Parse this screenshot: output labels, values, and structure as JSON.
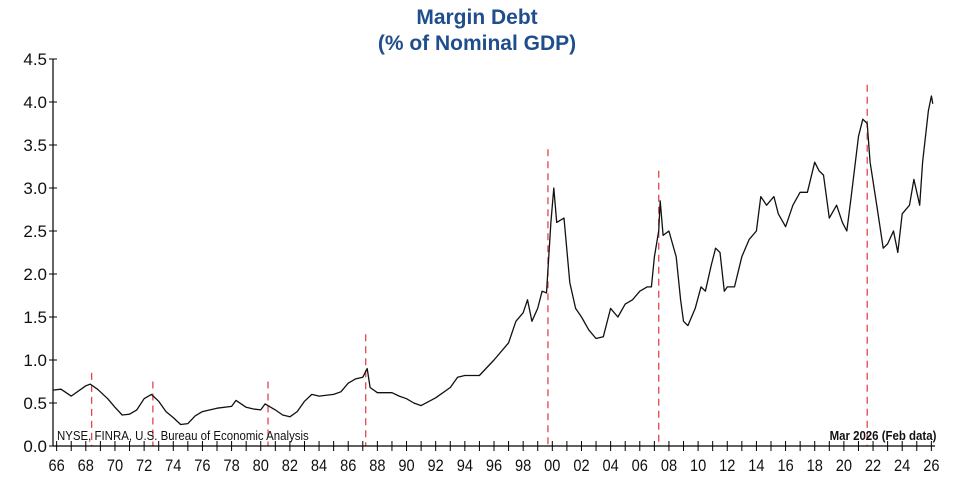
{
  "chart_data": {
    "type": "line",
    "title": "Margin Debt",
    "subtitle": "(% of Nominal GDP)",
    "xlabel": "",
    "ylabel": "",
    "xlim": [
      1965.75,
      2026.25
    ],
    "ylim": [
      0,
      4.5
    ],
    "grid": false,
    "yticks": [
      "0.0",
      "0.5",
      "1.0",
      "1.5",
      "2.0",
      "2.5",
      "3.0",
      "3.5",
      "4.0",
      "4.5"
    ],
    "xtick_labels": [
      "66",
      "68",
      "70",
      "72",
      "74",
      "76",
      "78",
      "80",
      "82",
      "84",
      "86",
      "88",
      "90",
      "92",
      "94",
      "96",
      "98",
      "00",
      "02",
      "04",
      "06",
      "08",
      "10",
      "12",
      "14",
      "16",
      "18",
      "20",
      "22",
      "24",
      "26"
    ],
    "source": "NYSE, FINRA, U.S. Bureau of Economic Analysis",
    "date_note": "Mar 2026 (Feb data)",
    "line_color": "#111111",
    "marker_color": "#e0474c",
    "series": [
      {
        "name": "Margin Debt % of GDP",
        "x": [
          1965.75,
          1966.3,
          1967,
          1968,
          1968.3,
          1968.8,
          1969.5,
          1970,
          1970.5,
          1971,
          1971.5,
          1972,
          1972.5,
          1973,
          1973.5,
          1974,
          1974.5,
          1975,
          1975.5,
          1976,
          1977,
          1978,
          1978.3,
          1979,
          1979.5,
          1980,
          1980.3,
          1981,
          1981.5,
          1982,
          1982.5,
          1983,
          1983.5,
          1984,
          1985,
          1985.5,
          1986,
          1986.5,
          1987,
          1987.3,
          1987.5,
          1988,
          1989,
          1989.5,
          1990,
          1990.5,
          1991,
          1992,
          1993,
          1993.5,
          1994,
          1995,
          1996,
          1997,
          1997.5,
          1998,
          1998.3,
          1998.6,
          1999,
          1999.3,
          1999.6,
          1999.9,
          2000.1,
          2000.3,
          2000.8,
          2001.2,
          2001.6,
          2002,
          2002.5,
          2003,
          2003.5,
          2004,
          2004.5,
          2005,
          2005.5,
          2006,
          2006.5,
          2006.8,
          2007,
          2007.3,
          2007.4,
          2007.6,
          2008,
          2008.5,
          2008.8,
          2009,
          2009.3,
          2009.8,
          2010.2,
          2010.5,
          2010.9,
          2011.2,
          2011.5,
          2011.8,
          2012,
          2012.5,
          2013,
          2013.5,
          2014,
          2014.3,
          2014.7,
          2015.2,
          2015.5,
          2016,
          2016.5,
          2017,
          2017.5,
          2018,
          2018.3,
          2018.6,
          2019,
          2019.5,
          2019.9,
          2020.2,
          2020.5,
          2021,
          2021.3,
          2021.6,
          2021.8,
          2022.3,
          2022.7,
          2023,
          2023.4,
          2023.7,
          2024,
          2024.5,
          2024.8,
          2025.2,
          2025.4,
          2025.8,
          2026,
          2026.1
        ],
        "y": [
          0.65,
          0.66,
          0.58,
          0.7,
          0.72,
          0.66,
          0.55,
          0.45,
          0.36,
          0.37,
          0.42,
          0.55,
          0.6,
          0.52,
          0.4,
          0.33,
          0.25,
          0.26,
          0.35,
          0.4,
          0.44,
          0.46,
          0.53,
          0.45,
          0.43,
          0.42,
          0.49,
          0.42,
          0.36,
          0.34,
          0.4,
          0.52,
          0.6,
          0.58,
          0.6,
          0.63,
          0.73,
          0.78,
          0.8,
          0.9,
          0.68,
          0.62,
          0.62,
          0.58,
          0.55,
          0.5,
          0.47,
          0.56,
          0.68,
          0.8,
          0.82,
          0.82,
          1.0,
          1.2,
          1.45,
          1.55,
          1.7,
          1.45,
          1.6,
          1.8,
          1.78,
          2.6,
          3.0,
          2.6,
          2.65,
          1.9,
          1.6,
          1.5,
          1.35,
          1.25,
          1.27,
          1.6,
          1.5,
          1.65,
          1.7,
          1.8,
          1.85,
          1.85,
          2.2,
          2.5,
          2.85,
          2.45,
          2.5,
          2.2,
          1.7,
          1.45,
          1.4,
          1.6,
          1.85,
          1.8,
          2.1,
          2.3,
          2.25,
          1.8,
          1.85,
          1.85,
          2.2,
          2.4,
          2.5,
          2.9,
          2.8,
          2.9,
          2.7,
          2.55,
          2.8,
          2.95,
          2.95,
          3.3,
          3.2,
          3.15,
          2.65,
          2.8,
          2.6,
          2.5,
          2.9,
          3.6,
          3.8,
          3.75,
          3.3,
          2.75,
          2.3,
          2.35,
          2.5,
          2.25,
          2.7,
          2.8,
          3.1,
          2.8,
          3.3,
          3.9,
          4.07,
          3.98
        ]
      }
    ],
    "market_peaks": [
      {
        "x": 1968.4,
        "top": 0.85
      },
      {
        "x": 1972.6,
        "top": 0.75
      },
      {
        "x": 1980.5,
        "top": 0.75
      },
      {
        "x": 1987.2,
        "top": 1.3
      },
      {
        "x": 1999.7,
        "top": 3.45
      },
      {
        "x": 2007.3,
        "top": 3.2
      },
      {
        "x": 2021.6,
        "top": 4.2
      }
    ]
  }
}
